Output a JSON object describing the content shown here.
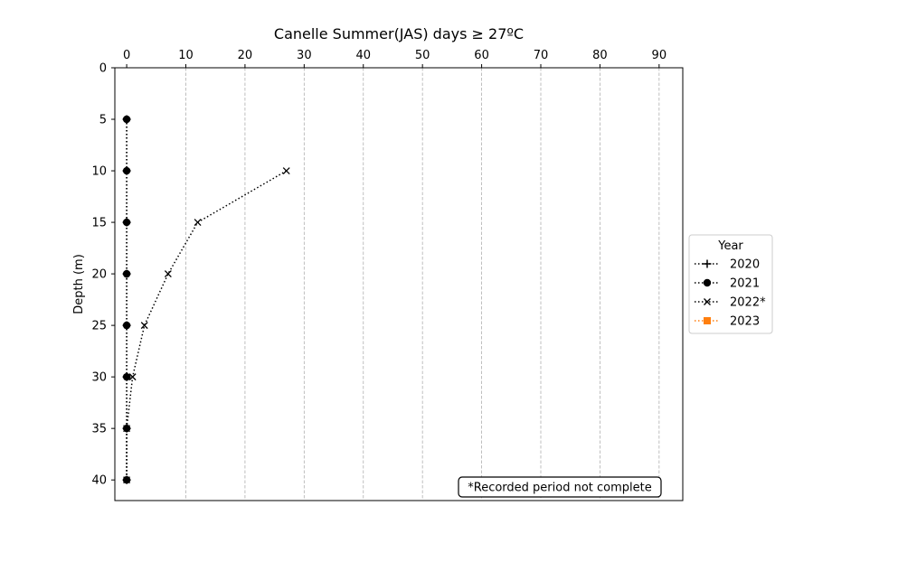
{
  "chart_data": {
    "type": "line",
    "title": "Canelle Summer(JAS) days ≥ 27ºC",
    "xlabel": "",
    "ylabel": "Depth (m)",
    "xlim": [
      -2,
      94
    ],
    "ylim": [
      42,
      0
    ],
    "xticks": [
      0,
      10,
      20,
      30,
      40,
      50,
      60,
      70,
      80,
      90
    ],
    "yticks": [
      0,
      5,
      10,
      15,
      20,
      25,
      30,
      35,
      40
    ],
    "x_axis_position": "top",
    "y_inverted": true,
    "grid": "vertical dashed",
    "legend": {
      "title": "Year",
      "placement": "outside right"
    },
    "series": [
      {
        "name": "2020",
        "marker": "plus",
        "color": "#000000",
        "line": "dotted",
        "x": [
          0,
          0,
          0,
          0,
          0,
          0,
          0,
          0
        ],
        "y": [
          5,
          10,
          15,
          20,
          25,
          30,
          35,
          40
        ]
      },
      {
        "name": "2021",
        "marker": "circle",
        "color": "#000000",
        "line": "dotted",
        "x": [
          0,
          0,
          0,
          0,
          0,
          0,
          0,
          0
        ],
        "y": [
          5,
          10,
          15,
          20,
          25,
          30,
          35,
          40
        ]
      },
      {
        "name": "2022*",
        "marker": "x",
        "color": "#000000",
        "line": "dotted",
        "x": [
          27,
          12,
          7,
          3,
          1,
          0,
          0
        ],
        "y": [
          10,
          15,
          20,
          25,
          30,
          35,
          40
        ]
      },
      {
        "name": "2023",
        "marker": "square",
        "color": "#ff7f0e",
        "line": "dotted",
        "x": [],
        "y": []
      }
    ],
    "annotation": "*Recorded period not complete"
  }
}
